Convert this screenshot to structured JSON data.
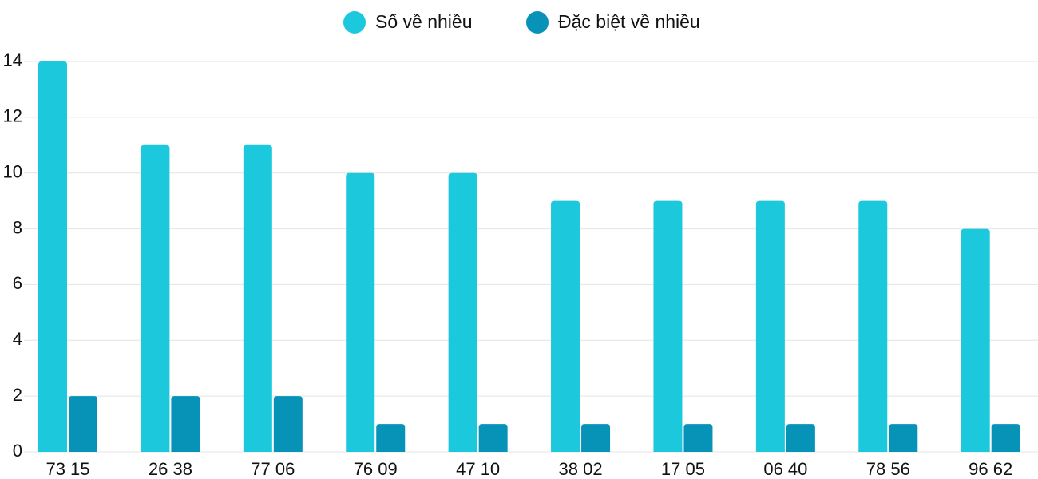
{
  "chart_data": {
    "type": "bar",
    "categories": [
      "73 15",
      "26 38",
      "77 06",
      "76 09",
      "47 10",
      "38 02",
      "17 05",
      "06 40",
      "78 56",
      "96 62"
    ],
    "series": [
      {
        "name": "Số về nhiều",
        "color": "#1bc8dc",
        "values": [
          14,
          11,
          11,
          10,
          10,
          9,
          9,
          9,
          9,
          8
        ]
      },
      {
        "name": "Đặc biệt về nhiều",
        "color": "#0793b8",
        "values": [
          2,
          2,
          2,
          1,
          1,
          1,
          1,
          1,
          1,
          1
        ]
      }
    ],
    "ylim": [
      0,
      14
    ],
    "yticks": [
      0,
      2,
      4,
      6,
      8,
      10,
      12,
      14
    ],
    "grid": true,
    "legend": "top"
  }
}
